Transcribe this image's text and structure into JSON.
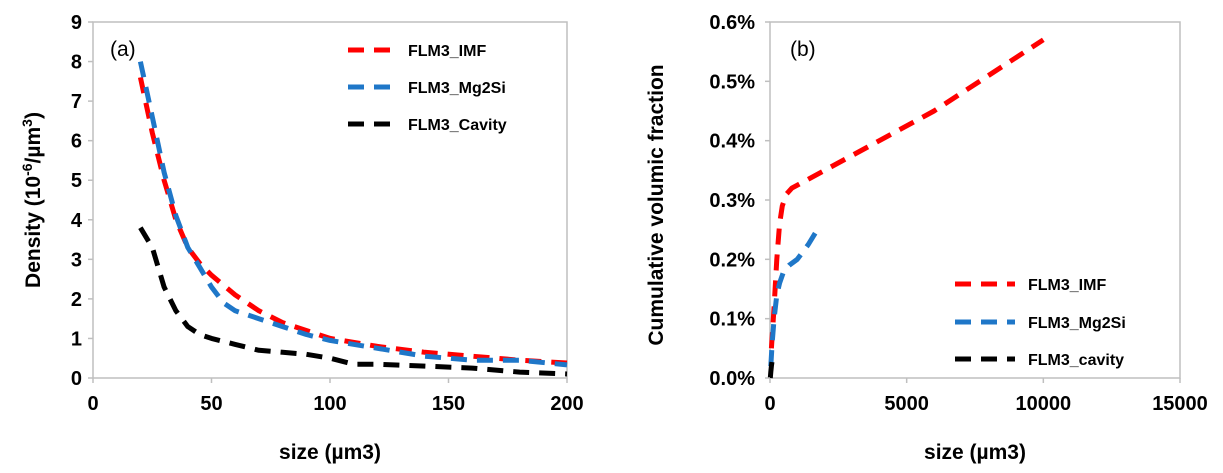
{
  "colors": {
    "red": "#ff0000",
    "blue": "#1f77c8",
    "black": "#000000"
  },
  "chart_data": [
    {
      "type": "line",
      "panel_label": "(a)",
      "xlabel": "size (µm3)",
      "ylabel_prefix": "Density (10",
      "ylabel_exp1": "-6",
      "ylabel_mid": "/µm",
      "ylabel_exp2": "3",
      "ylabel_suffix": ")",
      "xlim": [
        0,
        200
      ],
      "ylim": [
        0,
        9
      ],
      "xticks": [
        0,
        50,
        100,
        150,
        200
      ],
      "yticks": [
        0,
        1,
        2,
        3,
        4,
        5,
        6,
        7,
        8,
        9
      ],
      "xtick_labels": [
        "0",
        "50",
        "100",
        "150",
        "200"
      ],
      "ytick_labels": [
        "0",
        "1",
        "2",
        "3",
        "4",
        "5",
        "6",
        "7",
        "8",
        "9"
      ],
      "grid": false,
      "legend_position": "top-right",
      "series": [
        {
          "name": "FLM3_IMF",
          "color": "#ff0000",
          "x": [
            20,
            25,
            30,
            35,
            40,
            45,
            50,
            60,
            70,
            80,
            90,
            100,
            120,
            140,
            160,
            180,
            200
          ],
          "y": [
            7.6,
            6.2,
            5.0,
            4.0,
            3.3,
            2.9,
            2.6,
            2.1,
            1.7,
            1.4,
            1.2,
            1.0,
            0.8,
            0.65,
            0.55,
            0.45,
            0.38
          ]
        },
        {
          "name": "FLM3_Mg2Si",
          "color": "#1f77c8",
          "x": [
            20,
            25,
            30,
            35,
            40,
            45,
            50,
            55,
            60,
            70,
            80,
            90,
            100,
            120,
            140,
            160,
            180,
            200
          ],
          "y": [
            8.0,
            6.6,
            5.2,
            4.1,
            3.3,
            2.8,
            2.3,
            1.9,
            1.7,
            1.5,
            1.3,
            1.1,
            0.95,
            0.75,
            0.55,
            0.45,
            0.45,
            0.33
          ]
        },
        {
          "name": "FLM3_Cavity",
          "color": "#000000",
          "x": [
            20,
            25,
            30,
            35,
            40,
            45,
            50,
            60,
            70,
            80,
            90,
            100,
            110,
            120,
            140,
            160,
            180,
            200
          ],
          "y": [
            3.8,
            3.3,
            2.3,
            1.7,
            1.3,
            1.1,
            1.0,
            0.85,
            0.7,
            0.65,
            0.6,
            0.5,
            0.35,
            0.35,
            0.3,
            0.25,
            0.15,
            0.1
          ]
        }
      ]
    },
    {
      "type": "line",
      "panel_label": "(b)",
      "xlabel": "size (µm3)",
      "ylabel": "Cumulative volumic fraction",
      "xlim": [
        0,
        15000
      ],
      "ylim": [
        0,
        0.6
      ],
      "xticks": [
        0,
        5000,
        10000,
        15000
      ],
      "yticks": [
        0,
        0.1,
        0.2,
        0.3,
        0.4,
        0.5,
        0.6
      ],
      "xtick_labels": [
        "0",
        "5000",
        "10000",
        "15000"
      ],
      "ytick_labels": [
        "0.0%",
        "0.1%",
        "0.2%",
        "0.3%",
        "0.4%",
        "0.5%",
        "0.6%"
      ],
      "grid": false,
      "legend_position": "bottom-right",
      "series": [
        {
          "name": "FLM3_IMF",
          "color": "#ff0000",
          "x": [
            50,
            150,
            250,
            350,
            450,
            600,
            800,
            1200,
            2000,
            4000,
            6000,
            8000,
            10000
          ],
          "y": [
            0.05,
            0.12,
            0.2,
            0.26,
            0.29,
            0.31,
            0.32,
            0.33,
            0.35,
            0.4,
            0.45,
            0.51,
            0.57
          ]
        },
        {
          "name": "FLM3_Mg2Si",
          "color": "#1f77c8",
          "x": [
            30,
            80,
            150,
            250,
            350,
            500,
            700,
            1000,
            1400,
            1800
          ],
          "y": [
            0.02,
            0.06,
            0.1,
            0.14,
            0.16,
            0.18,
            0.19,
            0.2,
            0.225,
            0.255
          ]
        },
        {
          "name": "FLM3_cavity",
          "color": "#000000",
          "x": [
            10,
            30,
            50,
            80
          ],
          "y": [
            0.0,
            0.01,
            0.02,
            0.03
          ]
        }
      ]
    }
  ]
}
